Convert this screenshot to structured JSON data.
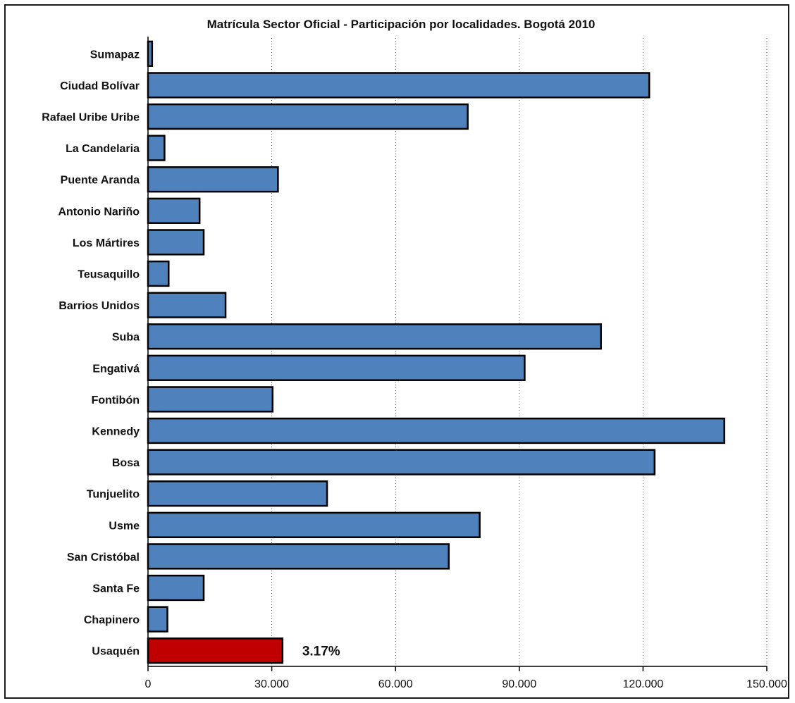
{
  "chart_data": {
    "type": "bar",
    "orientation": "horizontal",
    "title": "Matrícula Sector Oficial - Participación por localidades.  Bogotá 2010",
    "categories": [
      "Sumapaz",
      "Ciudad Bolívar",
      "Rafael Uribe Uribe",
      "La Candelaria",
      "Puente Aranda",
      "Antonio Nariño",
      "Los Mártires",
      "Teusaquillo",
      "Barrios Unidos",
      "Suba",
      "Engativá",
      "Fontibón",
      "Kennedy",
      "Bosa",
      "Tunjuelito",
      "Usme",
      "San Cristóbal",
      "Santa Fe",
      "Chapinero",
      "Usaquén"
    ],
    "values": [
      1000,
      121500,
      77500,
      4000,
      31500,
      12500,
      13500,
      5000,
      18800,
      109800,
      91300,
      30200,
      139700,
      122800,
      43400,
      80400,
      72900,
      13500,
      4700,
      32600
    ],
    "bar_colors": [
      "#4f81bd",
      "#4f81bd",
      "#4f81bd",
      "#4f81bd",
      "#4f81bd",
      "#4f81bd",
      "#4f81bd",
      "#4f81bd",
      "#4f81bd",
      "#4f81bd",
      "#4f81bd",
      "#4f81bd",
      "#4f81bd",
      "#4f81bd",
      "#4f81bd",
      "#4f81bd",
      "#4f81bd",
      "#4f81bd",
      "#4f81bd",
      "#c00000"
    ],
    "xlim": [
      0,
      150000
    ],
    "x_ticks": [
      0,
      30000,
      60000,
      90000,
      120000,
      150000
    ],
    "x_tick_labels": [
      "0",
      "30.000",
      "60.000",
      "90.000",
      "120.000",
      "150.000"
    ],
    "grid": "vertical-dotted",
    "annotation": {
      "category": "Usaquén",
      "text": "3.17%"
    },
    "xlabel": "",
    "ylabel": ""
  }
}
